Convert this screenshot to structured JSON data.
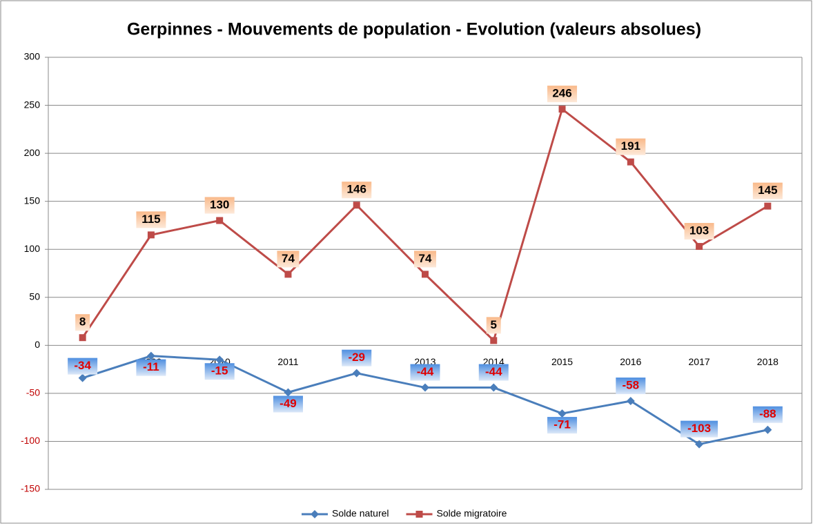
{
  "chart_data": {
    "type": "line",
    "title": "Gerpinnes - Mouvements de population - Evolution (valeurs absolues)",
    "categories": [
      "2008",
      "2009",
      "2010",
      "2011",
      "2012",
      "2013",
      "2014",
      "2015",
      "2016",
      "2017",
      "2018"
    ],
    "series": [
      {
        "name": "Solde naturel",
        "color": "#4a7ebb",
        "marker": "diamond",
        "values": [
          -34,
          -11,
          -15,
          -49,
          -29,
          -44,
          -44,
          -71,
          -58,
          -103,
          -88
        ]
      },
      {
        "name": "Solde migratoire",
        "color": "#be4b48",
        "marker": "square",
        "values": [
          8,
          115,
          130,
          74,
          146,
          74,
          5,
          246,
          191,
          103,
          145
        ]
      }
    ],
    "ylim": [
      -150,
      300
    ],
    "yticks": [
      -150,
      -100,
      -50,
      0,
      50,
      100,
      150,
      200,
      250,
      300
    ],
    "grid": true,
    "legend": "bottom"
  }
}
